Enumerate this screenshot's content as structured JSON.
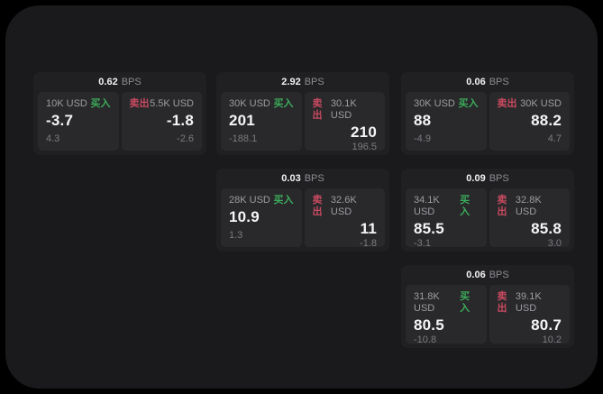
{
  "labels": {
    "bps_unit": "BPS",
    "buy": "买入",
    "sell": "卖出"
  },
  "colors": {
    "buy_green": "#3cab5a",
    "sell_red": "#c94a60",
    "screen_bg": "#1a1a1c",
    "card_bg": "#202023",
    "panel_bg": "#29292c"
  },
  "cards": [
    {
      "bps": "0.62",
      "buy": {
        "amount": "10K USD",
        "value": "-3.7",
        "sub": "4.3"
      },
      "sell": {
        "amount": "5.5K USD",
        "value": "-1.8",
        "sub": "-2.6"
      }
    },
    {
      "bps": "2.92",
      "buy": {
        "amount": "30K USD",
        "value": "201",
        "sub": "-188.1"
      },
      "sell": {
        "amount": "30.1K USD",
        "value": "210",
        "sub": "196.5"
      }
    },
    {
      "bps": "0.06",
      "buy": {
        "amount": "30K USD",
        "value": "88",
        "sub": "-4.9"
      },
      "sell": {
        "amount": "30K USD",
        "value": "88.2",
        "sub": "4.7"
      }
    },
    {
      "bps": "0.03",
      "buy": {
        "amount": "28K USD",
        "value": "10.9",
        "sub": "1.3"
      },
      "sell": {
        "amount": "32.6K USD",
        "value": "11",
        "sub": "-1.8"
      }
    },
    {
      "bps": "0.09",
      "buy": {
        "amount": "34.1K USD",
        "value": "85.5",
        "sub": "-3.1"
      },
      "sell": {
        "amount": "32.8K USD",
        "value": "85.8",
        "sub": "3.0"
      }
    },
    {
      "bps": "0.06",
      "buy": {
        "amount": "31.8K USD",
        "value": "80.5",
        "sub": "-10.8"
      },
      "sell": {
        "amount": "39.1K USD",
        "value": "80.7",
        "sub": "10.2"
      }
    }
  ]
}
